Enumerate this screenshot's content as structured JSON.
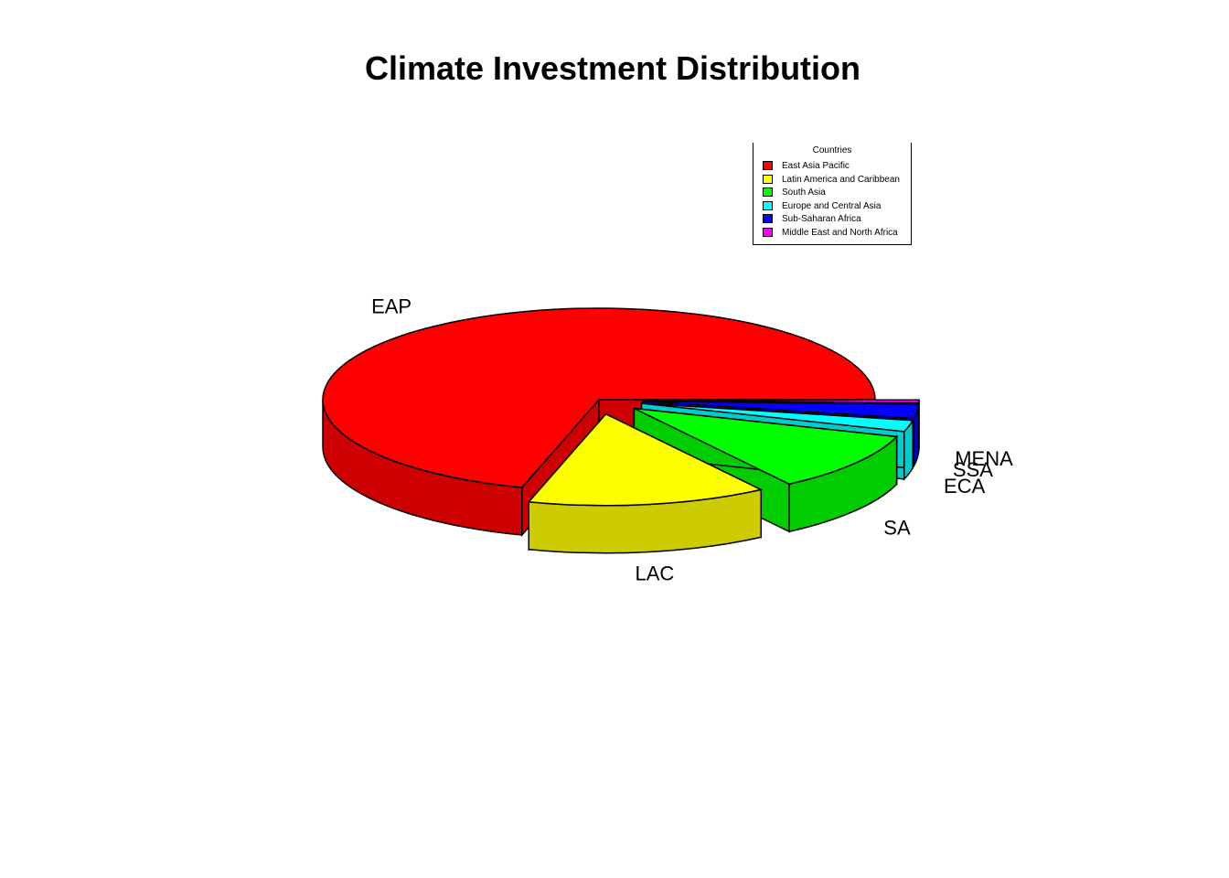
{
  "chart_data": {
    "type": "pie",
    "title": "Climate Investment Distribution",
    "style": "3d-exploded",
    "categories": [
      "EAP",
      "LAC",
      "SA",
      "ECA",
      "SSA",
      "MENA"
    ],
    "values": [
      70.5,
      14,
      10.5,
      2,
      2.5,
      0.5
    ],
    "colors": [
      "#ff0000",
      "#ffff00",
      "#00ff00",
      "#00ffff",
      "#0000ff",
      "#ff00ff"
    ],
    "side_colors": [
      "#cc0000",
      "#cccc00",
      "#00cc00",
      "#00cccc",
      "#0000cc",
      "#cc00cc"
    ],
    "legend": {
      "title": "Countries",
      "placement": "top-right",
      "entries": [
        "East Asia Pacific",
        "Latin America and Caribbean",
        "South Asia",
        "Europe and Central Asia",
        "Sub-Saharan Africa",
        "Middle East and North Africa"
      ]
    }
  }
}
